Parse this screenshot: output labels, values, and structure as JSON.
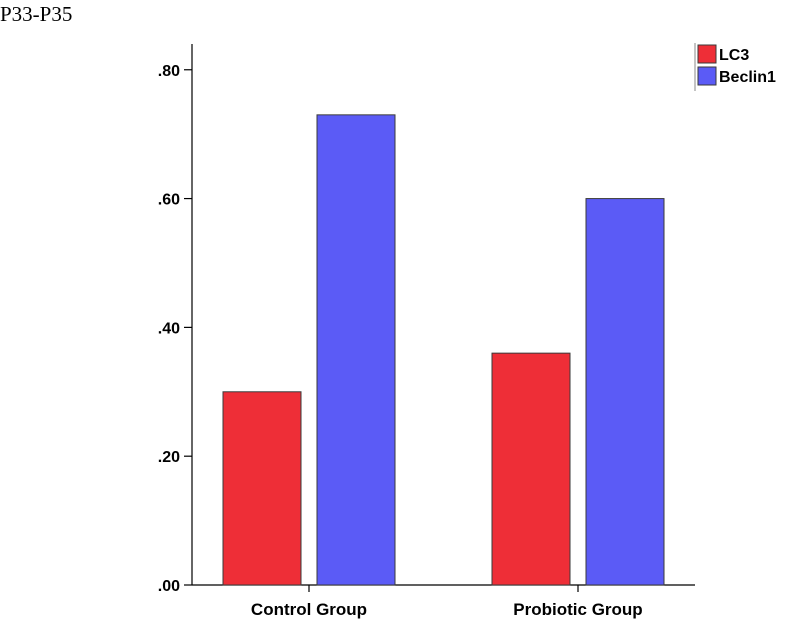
{
  "page": {
    "title": "P33-P35"
  },
  "chart_data": {
    "type": "bar",
    "categories": [
      "Control Group",
      "Probiotic Group"
    ],
    "series": [
      {
        "name": "LC3",
        "values": [
          0.3,
          0.36
        ],
        "color": "#ee2e37"
      },
      {
        "name": "Beclin1",
        "values": [
          0.73,
          0.6
        ],
        "color": "#5b5bf6"
      }
    ],
    "ylim": [
      0,
      0.84
    ],
    "yticks": [
      0.0,
      0.2,
      0.4,
      0.6,
      0.8
    ],
    "ytick_labels": [
      ".00",
      ".20",
      ".40",
      ".60",
      ".80"
    ],
    "legend_position": "top-right",
    "grid": false
  }
}
